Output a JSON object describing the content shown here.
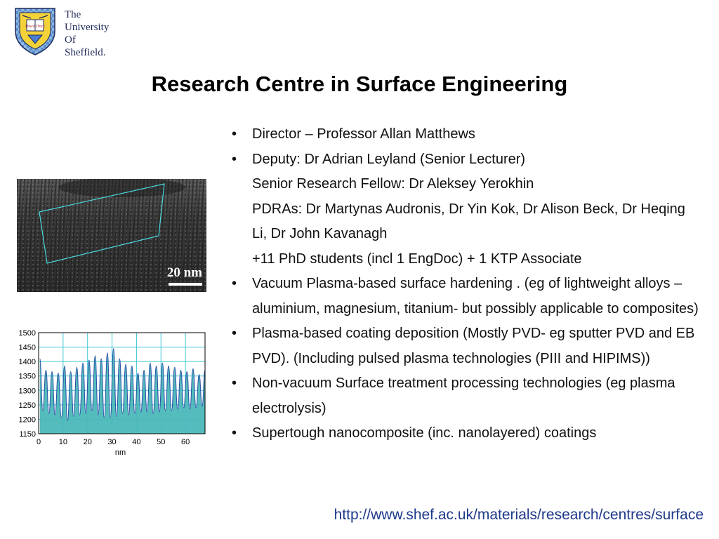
{
  "logo": {
    "shield_text": "Disce Doce",
    "lines": [
      "The",
      "University",
      "Of",
      "Sheffield."
    ]
  },
  "title": "Research Centre in  Surface Engineering",
  "micrograph": {
    "scale_label": "20 nm"
  },
  "bullets": [
    {
      "bullet": "•",
      "text": "Director – Professor Allan Matthews"
    },
    {
      "bullet": "•",
      "text": "Deputy: Dr Adrian Leyland (Senior Lecturer)"
    },
    {
      "bullet": "",
      "text": "Senior Research Fellow: Dr Aleksey Yerokhin"
    },
    {
      "bullet": "",
      "text": "PDRAs: Dr Martynas Audronis, Dr Yin Kok, Dr Alison Beck, Dr Heqing Li, Dr John Kavanagh"
    },
    {
      "bullet": "",
      "text": "+11 PhD students (incl 1 EngDoc) + 1 KTP Associate"
    },
    {
      "bullet": "•",
      "text": "Vacuum Plasma-based surface hardening . (eg of lightweight alloys – aluminium,  magnesium, titanium- but possibly applicable to composites)"
    },
    {
      "bullet": "•",
      "text": "Plasma-based coating deposition (Mostly PVD- eg sputter PVD and EB PVD). (Including pulsed plasma technologies (PIII and HIPIMS))"
    },
    {
      "bullet": "•",
      "text": "Non-vacuum Surface treatment processing technologies (eg plasma electrolysis)"
    },
    {
      "bullet": "•",
      "text": "Supertough nanocomposite (inc. nanolayered) coatings"
    }
  ],
  "url": "http://www.shef.ac.uk/materials/research/centres/surface",
  "chart_data": {
    "type": "area",
    "xlabel": "nm",
    "ylabel": "",
    "xlim": [
      0,
      68
    ],
    "ylim": [
      1150,
      1500
    ],
    "x_ticks": [
      0,
      10,
      20,
      30,
      40,
      50,
      60
    ],
    "y_ticks": [
      1150,
      1200,
      1250,
      1300,
      1350,
      1400,
      1450,
      1500
    ],
    "grid": true,
    "colors": {
      "fill": "#4bb8b8",
      "line": "#2b4fa8",
      "grid": "#3fc6d8"
    },
    "peaks": [
      {
        "x": 0.5,
        "y": 1410
      },
      {
        "x": 1.7,
        "y": 1230
      },
      {
        "x": 3.0,
        "y": 1370
      },
      {
        "x": 4.2,
        "y": 1220
      },
      {
        "x": 5.5,
        "y": 1365
      },
      {
        "x": 6.7,
        "y": 1215
      },
      {
        "x": 8.0,
        "y": 1360
      },
      {
        "x": 9.3,
        "y": 1205
      },
      {
        "x": 10.6,
        "y": 1385
      },
      {
        "x": 11.8,
        "y": 1195
      },
      {
        "x": 13.1,
        "y": 1365
      },
      {
        "x": 14.3,
        "y": 1210
      },
      {
        "x": 15.6,
        "y": 1380
      },
      {
        "x": 16.8,
        "y": 1215
      },
      {
        "x": 18.1,
        "y": 1395
      },
      {
        "x": 19.3,
        "y": 1220
      },
      {
        "x": 20.6,
        "y": 1405
      },
      {
        "x": 21.8,
        "y": 1230
      },
      {
        "x": 23.1,
        "y": 1420
      },
      {
        "x": 24.3,
        "y": 1215
      },
      {
        "x": 25.6,
        "y": 1410
      },
      {
        "x": 26.8,
        "y": 1205
      },
      {
        "x": 28.1,
        "y": 1430
      },
      {
        "x": 29.3,
        "y": 1205
      },
      {
        "x": 30.6,
        "y": 1445
      },
      {
        "x": 31.8,
        "y": 1210
      },
      {
        "x": 33.1,
        "y": 1410
      },
      {
        "x": 34.3,
        "y": 1220
      },
      {
        "x": 35.6,
        "y": 1390
      },
      {
        "x": 36.8,
        "y": 1215
      },
      {
        "x": 38.1,
        "y": 1385
      },
      {
        "x": 39.3,
        "y": 1220
      },
      {
        "x": 40.6,
        "y": 1360
      },
      {
        "x": 41.8,
        "y": 1225
      },
      {
        "x": 43.1,
        "y": 1370
      },
      {
        "x": 44.3,
        "y": 1225
      },
      {
        "x": 45.6,
        "y": 1395
      },
      {
        "x": 46.8,
        "y": 1220
      },
      {
        "x": 48.1,
        "y": 1385
      },
      {
        "x": 49.3,
        "y": 1225
      },
      {
        "x": 50.6,
        "y": 1395
      },
      {
        "x": 51.8,
        "y": 1230
      },
      {
        "x": 53.1,
        "y": 1385
      },
      {
        "x": 54.3,
        "y": 1230
      },
      {
        "x": 55.6,
        "y": 1380
      },
      {
        "x": 56.8,
        "y": 1235
      },
      {
        "x": 58.1,
        "y": 1370
      },
      {
        "x": 59.3,
        "y": 1240
      },
      {
        "x": 60.6,
        "y": 1365
      },
      {
        "x": 61.8,
        "y": 1235
      },
      {
        "x": 63.1,
        "y": 1375
      },
      {
        "x": 64.3,
        "y": 1240
      },
      {
        "x": 65.6,
        "y": 1355
      },
      {
        "x": 66.8,
        "y": 1245
      },
      {
        "x": 68.0,
        "y": 1370
      }
    ]
  }
}
